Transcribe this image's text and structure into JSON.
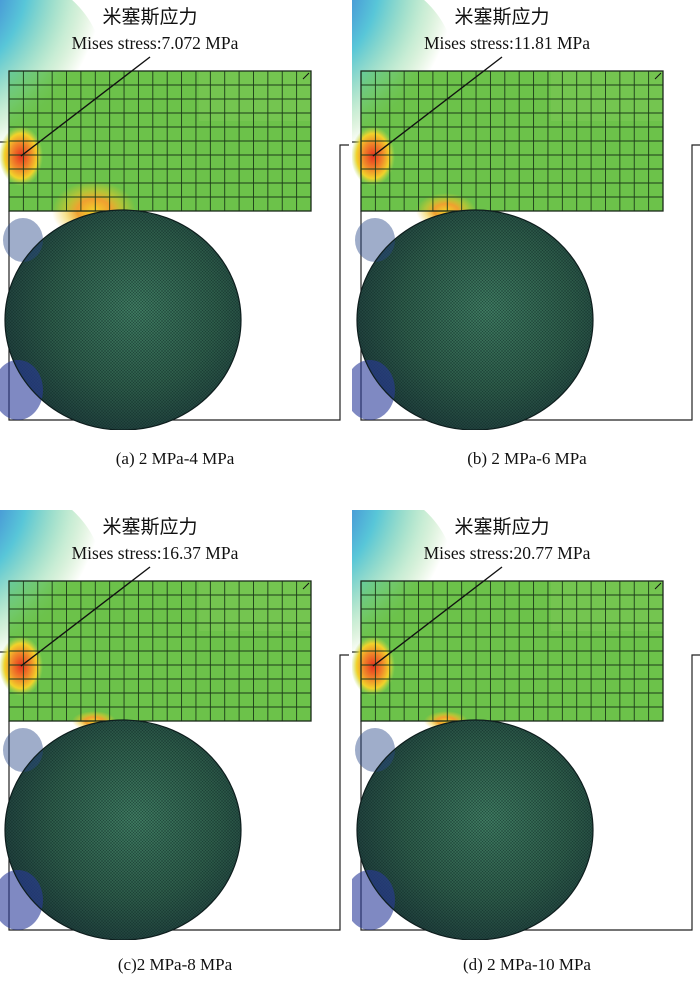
{
  "panels": [
    {
      "id": "a",
      "label_cn": "米塞斯应力",
      "mises_label": "Mises stress:7.072 MPa",
      "caption": "(a) 2 MPa-4 MPa"
    },
    {
      "id": "b",
      "label_cn": "米塞斯应力",
      "mises_label": "Mises stress:11.81 MPa",
      "caption": "(b) 2 MPa-6 MPa"
    },
    {
      "id": "c",
      "label_cn": "米塞斯应力",
      "mises_label": "Mises stress:16.37 MPa",
      "caption": "(c)2 MPa-8 MPa"
    },
    {
      "id": "d",
      "label_cn": "米塞斯应力",
      "mises_label": "Mises stress:20.77 MPa",
      "caption": "(d) 2 MPa-10 MPa"
    }
  ],
  "colors": {
    "mesh_green": "#6cc24a",
    "mesh_line": "#1c3a18",
    "hotspot_red": "#e8321e",
    "hotspot_yellow": "#f2d22a",
    "cold_blue": "#2a2a9c",
    "particle_dark": "#20403a"
  }
}
